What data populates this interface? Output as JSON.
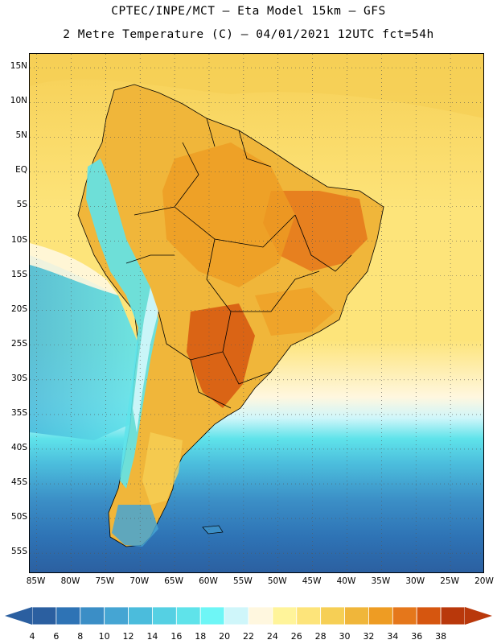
{
  "header": {
    "line1": "CPTEC/INPE/MCT –  Eta Model 15km – GFS",
    "line2": "2 Metre Temperature (C) – 04/01/2021 12UTC fct=54h"
  },
  "map": {
    "latitude_labels": [
      "15N",
      "10N",
      "5N",
      "EQ",
      "5S",
      "10S",
      "15S",
      "20S",
      "25S",
      "30S",
      "35S",
      "40S",
      "45S",
      "50S",
      "55S"
    ],
    "longitude_labels": [
      "85W",
      "80W",
      "75W",
      "70W",
      "65W",
      "60W",
      "55W",
      "50W",
      "45W",
      "40W",
      "35W",
      "30W",
      "25W",
      "20W"
    ],
    "lat_range": [
      -58,
      17
    ],
    "lon_range": [
      -86,
      -20
    ]
  },
  "colorbar": {
    "values": [
      "4",
      "6",
      "8",
      "10",
      "12",
      "14",
      "16",
      "18",
      "20",
      "22",
      "24",
      "26",
      "28",
      "30",
      "32",
      "34",
      "36",
      "38"
    ],
    "colors": [
      "#2b5fa0",
      "#2e73b5",
      "#3b8ec6",
      "#45a5d3",
      "#4bbcdc",
      "#55d0e3",
      "#5fe3ea",
      "#6ef6f6",
      "#cff6fa",
      "#fff7df",
      "#fff49a",
      "#fde47a",
      "#f6cf55",
      "#f0b63a",
      "#ee9c23",
      "#e5771b",
      "#d6560f",
      "#b9380b"
    ],
    "low_color": "#2b5fa0",
    "high_color": "#b9380b"
  }
}
